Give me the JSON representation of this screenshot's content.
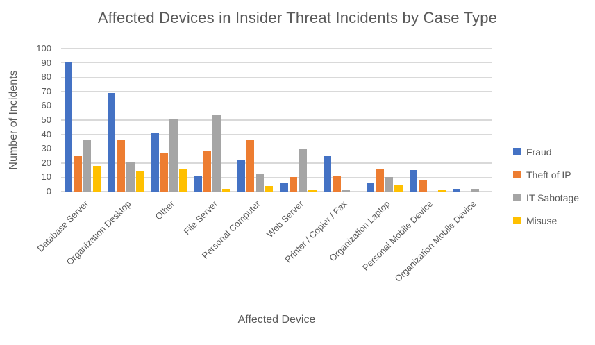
{
  "chart_data": {
    "type": "bar",
    "title": "Affected Devices in Insider Threat Incidents by Case Type",
    "xlabel": "Affected Device",
    "ylabel": "Number of Incidents",
    "ylim": [
      0,
      100
    ],
    "yticks": [
      0,
      10,
      20,
      30,
      40,
      50,
      60,
      70,
      80,
      90,
      100
    ],
    "grid": true,
    "legend_position": "right",
    "categories": [
      "Database Server",
      "Organization Desktop",
      "Other",
      "File Server",
      "Personal Computer",
      "Web Server",
      "Printer / Copier / Fax",
      "Organization Laptop",
      "Personal Mobile Device",
      "Organization Mobile Device"
    ],
    "series": [
      {
        "name": "Fraud",
        "color": "#4472C4",
        "values": [
          91,
          69,
          41,
          11,
          22,
          6,
          25,
          6,
          15,
          2
        ]
      },
      {
        "name": "Theft of IP",
        "color": "#ED7D31",
        "values": [
          25,
          36,
          27,
          28,
          36,
          10,
          11,
          16,
          8,
          0
        ]
      },
      {
        "name": "IT Sabotage",
        "color": "#A5A5A5",
        "values": [
          36,
          21,
          51,
          54,
          12,
          30,
          1,
          10,
          0,
          2
        ]
      },
      {
        "name": "Misuse",
        "color": "#FFC000",
        "values": [
          18,
          14,
          16,
          2,
          4,
          1,
          0,
          5,
          1,
          0
        ]
      }
    ],
    "colors": {
      "text": "#595959",
      "grid": "#D9D9D9",
      "background": "#FFFFFF"
    }
  }
}
